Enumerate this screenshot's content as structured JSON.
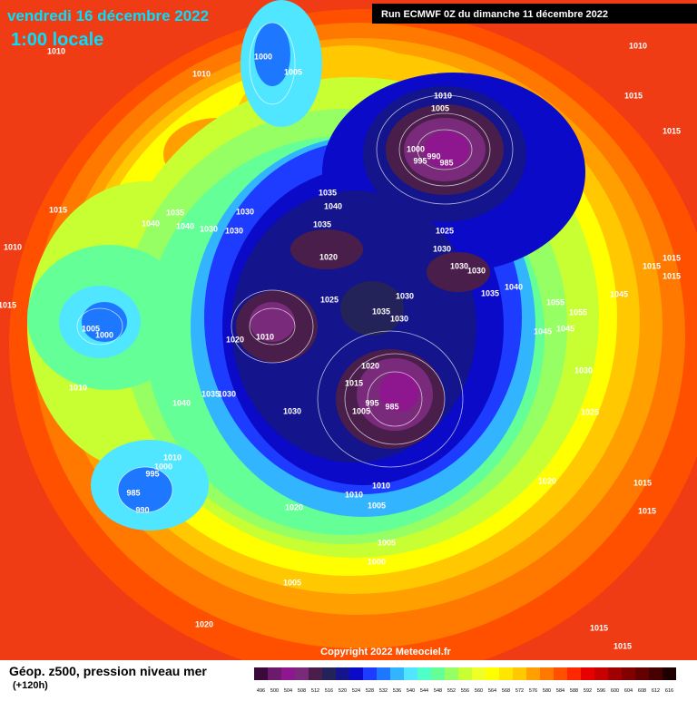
{
  "header": {
    "date": "vendredi 16 décembre 2022",
    "time": "1:00 locale",
    "run": "Run ECMWF 0Z du dimanche 11 décembre 2022"
  },
  "map": {
    "pressure_labels": [
      1010,
      1010,
      1000,
      1005,
      1010,
      1015,
      1015,
      1010,
      1005,
      1000,
      995,
      990,
      985,
      1015,
      1035,
      1040,
      1035,
      1040,
      1040,
      1030,
      1030,
      1030,
      1010,
      1035,
      1020,
      1025,
      1030,
      1030,
      1030,
      1015,
      1015,
      1015,
      1015,
      1005,
      1000,
      1025,
      1035,
      1030,
      1030,
      1035,
      1040,
      1055,
      1045,
      1055,
      1045,
      1045,
      1020,
      1010,
      1020,
      1015,
      1030,
      1010,
      1040,
      1035,
      1030,
      1030,
      1005,
      995,
      985,
      1025,
      1010,
      1000,
      995,
      985,
      990,
      1020,
      1015,
      1010,
      1010,
      1005,
      1020,
      1015,
      1005,
      1000,
      1005,
      1020,
      1015,
      1015
    ]
  },
  "copyright": "Copyright 2022 Meteociel.fr",
  "legend": {
    "title": "Géop. z500, pression niveau mer",
    "subtitle": "(+120h)",
    "scale": {
      "values": [
        496,
        500,
        504,
        508,
        512,
        516,
        520,
        524,
        528,
        532,
        536,
        540,
        544,
        548,
        552,
        556,
        560,
        564,
        568,
        572,
        576,
        580,
        584,
        588,
        592,
        596,
        600,
        604,
        608,
        612,
        616
      ],
      "colors": [
        "#3a0b3a",
        "#6c1a6c",
        "#8e168e",
        "#7a2a7a",
        "#4a1e4a",
        "#23235a",
        "#14148c",
        "#0a0ac8",
        "#1e3cff",
        "#1e78ff",
        "#32b4ff",
        "#50e6ff",
        "#50ffc8",
        "#64ff96",
        "#96ff64",
        "#c8ff32",
        "#f0ff28",
        "#ffff00",
        "#ffe600",
        "#ffc800",
        "#ffa000",
        "#ff7800",
        "#ff5000",
        "#ff2800",
        "#e60000",
        "#c80000",
        "#a00000",
        "#820000",
        "#640000",
        "#460000",
        "#1e0000"
      ]
    }
  }
}
